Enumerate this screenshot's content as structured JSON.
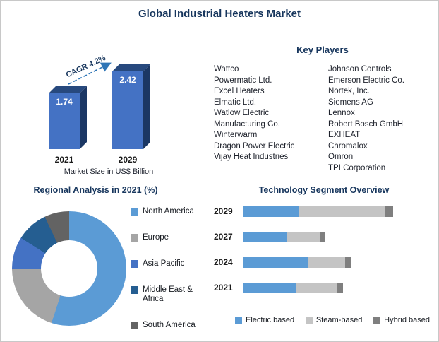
{
  "page": {
    "title": "Global Industrial Heaters Market"
  },
  "key_players": {
    "heading": "Key Players",
    "left": [
      "Wattco",
      "Powermatic Ltd.",
      "Excel Heaters",
      "Elmatic Ltd.",
      "Watlow Electric Manufacturing Co.",
      "Winterwarm",
      "Dragon Power Electric",
      "Vijay Heat Industries"
    ],
    "right": [
      "Johnson Controls",
      "Emerson Electric Co.",
      "Nortek, Inc.",
      "Siemens AG",
      "Lennox",
      "Robert Bosch GmbH",
      "EXHEAT",
      "Chromalox",
      "Omron",
      "TPI Corporation"
    ]
  },
  "chart_data": [
    {
      "type": "bar",
      "name": "market-size",
      "title": "Market Size in US$ Billion",
      "annotation": "CAGR 4.2%",
      "categories": [
        "2021",
        "2029"
      ],
      "values": [
        1.74,
        2.42
      ],
      "ylim": [
        0,
        2.42
      ],
      "colors": {
        "front": "#4472C4",
        "top": "#27497E",
        "side": "#1B3764"
      },
      "value_label_color": "#FFFFFF"
    },
    {
      "type": "pie",
      "name": "regional-analysis",
      "title": "Regional Analysis in 2021 (%)",
      "donut": true,
      "legend_position": "right",
      "segments": [
        {
          "label": "North America",
          "value": 55,
          "color": "#5B9BD5"
        },
        {
          "label": "Europe",
          "value": 20,
          "color": "#A5A5A5"
        },
        {
          "label": "Asia Pacific",
          "value": 9,
          "color": "#4472C4"
        },
        {
          "label": "Middle East & Africa",
          "value": 9,
          "color": "#255E91"
        },
        {
          "label": "South America",
          "value": 7,
          "color": "#636363"
        }
      ]
    },
    {
      "type": "bar",
      "subtype": "stacked-horizontal",
      "name": "technology-segment",
      "title": "Technology Segment Overview",
      "categories": [
        "2029",
        "2027",
        "2024",
        "2021"
      ],
      "x_max": 100,
      "legend_position": "bottom",
      "series": [
        {
          "name": "Electric based",
          "color": "#5B9BD5",
          "values": [
            37,
            29,
            43,
            35
          ]
        },
        {
          "name": "Steam-based",
          "color": "#C4C4C4",
          "values": [
            58,
            22,
            25,
            28
          ]
        },
        {
          "name": "Hybrid based",
          "color": "#7F7F7F",
          "values": [
            5,
            4,
            4,
            4
          ]
        }
      ]
    }
  ]
}
